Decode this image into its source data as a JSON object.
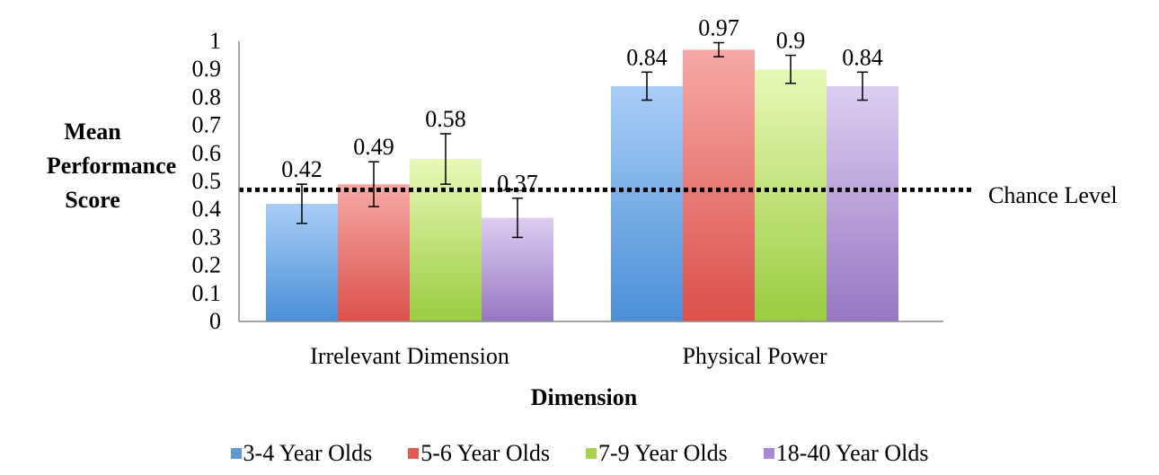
{
  "chart_data": {
    "type": "bar",
    "categories": [
      "Irrelevant Dimension",
      "Physical Power"
    ],
    "series": [
      {
        "name": "3-4 Year Olds",
        "values": [
          0.42,
          0.84
        ],
        "err": [
          0.07,
          0.05
        ],
        "color_top": "#a9cdf6",
        "color_bottom": "#4a90d8",
        "legend_color": "#5b9bd5"
      },
      {
        "name": "5-6 Year Olds",
        "values": [
          0.49,
          0.97
        ],
        "err": [
          0.08,
          0.025
        ],
        "color_top": "#f6a9a6",
        "color_bottom": "#dc5049",
        "legend_color": "#e15b55"
      },
      {
        "name": "7-9 Year Olds",
        "values": [
          0.58,
          0.9
        ],
        "err": [
          0.09,
          0.05
        ],
        "color_top": "#e8f9b8",
        "color_bottom": "#9acc3f",
        "legend_color": "#a7d34f"
      },
      {
        "name": "18-40 Year Olds",
        "values": [
          0.37,
          0.84
        ],
        "err": [
          0.07,
          0.05
        ],
        "color_top": "#ddcdf1",
        "color_bottom": "#9777c3",
        "legend_color": "#a88ad0"
      }
    ],
    "data_labels": [
      [
        "0.42",
        "0.84"
      ],
      [
        "0.49",
        "0.97"
      ],
      [
        "0.58",
        "0.9"
      ],
      [
        "0.37",
        "0.84"
      ]
    ],
    "reference_line": {
      "value": 0.47,
      "label": "Chance Level",
      "style": "dotted"
    },
    "xlabel": "Dimension",
    "ylabel": [
      "Mean",
      "Performance",
      "Score"
    ],
    "ylim": [
      0,
      1
    ],
    "yticks": [
      "0",
      "0.1",
      "0.2",
      "0.3",
      "0.4",
      "0.5",
      "0.6",
      "0.7",
      "0.8",
      "0.9",
      "1"
    ],
    "grid": false,
    "legend_position": "bottom"
  }
}
